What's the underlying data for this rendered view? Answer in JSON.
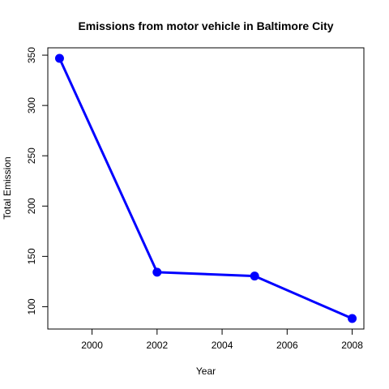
{
  "chart_data": {
    "type": "line",
    "title": "Emissions from motor vehicle in Baltimore City",
    "xlabel": "Year",
    "ylabel": "Total Emission",
    "x": [
      1999,
      2002,
      2005,
      2008
    ],
    "series": [
      {
        "values": [
          346.82,
          134.31,
          130.43,
          88.28
        ]
      }
    ],
    "xlim": [
      1998.64,
      2008.36
    ],
    "ylim": [
      77.8,
      357.3
    ],
    "xticks": [
      2000,
      2002,
      2004,
      2006,
      2008
    ],
    "yticks": [
      100,
      150,
      200,
      250,
      300,
      350
    ],
    "grid": false,
    "line_color": "#0000ff",
    "marker_color": "#0000ff"
  }
}
